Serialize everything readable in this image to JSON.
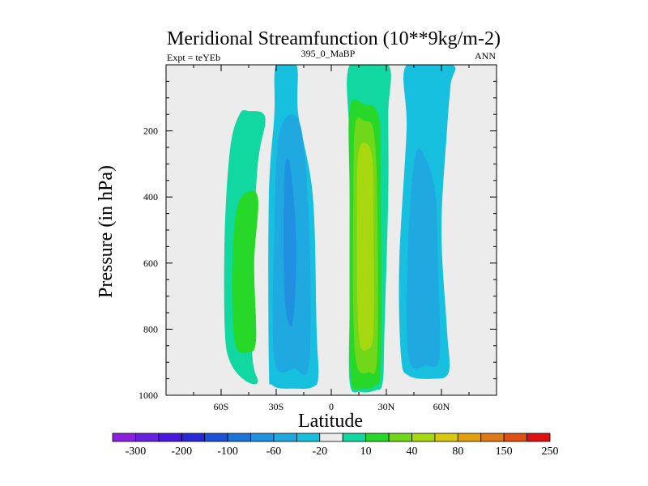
{
  "chart_data": {
    "type": "contour",
    "title": "Meridional Streamfunction (10**9kg/m-2)",
    "subtitle_left": "Expt = teYEb",
    "subtitle_center": "395_0_MaBP",
    "subtitle_right": "ANN",
    "xlabel": "Latitude",
    "ylabel": "Pressure (in hPa)",
    "xlim": [
      -90,
      90
    ],
    "ylim": [
      1000,
      0
    ],
    "x_ticks": [
      {
        "value": -60,
        "label": "60S"
      },
      {
        "value": -30,
        "label": "30S"
      },
      {
        "value": 0,
        "label": "0"
      },
      {
        "value": 30,
        "label": "30N"
      },
      {
        "value": 60,
        "label": "60N"
      }
    ],
    "y_ticks": [
      {
        "value": 200,
        "label": "200"
      },
      {
        "value": 400,
        "label": "400"
      },
      {
        "value": 600,
        "label": "600"
      },
      {
        "value": 800,
        "label": "800"
      },
      {
        "value": 1000,
        "label": "1000"
      }
    ],
    "colorbar": {
      "colors": [
        "#8c20e0",
        "#6820e0",
        "#4818e0",
        "#2828d8",
        "#1c50d8",
        "#1c74d8",
        "#2090e0",
        "#20a8e0",
        "#18c0e0",
        "#ececec",
        "#10d8a0",
        "#28d828",
        "#70d818",
        "#a8d810",
        "#d8c810",
        "#e0a010",
        "#e07818",
        "#e05010",
        "#e01010"
      ],
      "labels": [
        "-300",
        "-200",
        "-100",
        "-60",
        "-20",
        "10",
        "40",
        "80",
        "150",
        "250"
      ]
    },
    "contours": [
      {
        "level": 10,
        "color": "#10d8a0",
        "region": "SH Ferrel cell",
        "points": [
          [
            -36,
            160
          ],
          [
            -40,
            300
          ],
          [
            -43,
            600
          ],
          [
            -43,
            880
          ],
          [
            -40,
            960
          ],
          [
            -47,
            955
          ],
          [
            -55,
            900
          ],
          [
            -58,
            800
          ],
          [
            -58,
            500
          ],
          [
            -55,
            250
          ],
          [
            -50,
            150
          ],
          [
            -45,
            140
          ]
        ]
      },
      {
        "level": 40,
        "color": "#28d828",
        "region": "SH Ferrel core",
        "points": [
          [
            -40,
            400
          ],
          [
            -42,
            600
          ],
          [
            -41,
            830
          ],
          [
            -45,
            870
          ],
          [
            -52,
            850
          ],
          [
            -54,
            700
          ],
          [
            -53,
            500
          ],
          [
            -49,
            400
          ]
        ]
      },
      {
        "level": -20,
        "color": "#18c0e0",
        "region": "SH Hadley cell",
        "points": [
          [
            -19,
            0
          ],
          [
            -18,
            150
          ],
          [
            -10,
            400
          ],
          [
            -8,
            800
          ],
          [
            -7,
            940
          ],
          [
            -10,
            975
          ],
          [
            -20,
            980
          ],
          [
            -32,
            970
          ],
          [
            -34,
            900
          ],
          [
            -34,
            400
          ],
          [
            -31,
            150
          ],
          [
            -30,
            0
          ]
        ]
      },
      {
        "level": -60,
        "color": "#20a8e0",
        "region": "SH Hadley core",
        "points": [
          [
            -17,
            180
          ],
          [
            -12,
            500
          ],
          [
            -12,
            900
          ],
          [
            -20,
            920
          ],
          [
            -31,
            890
          ],
          [
            -31,
            500
          ],
          [
            -28,
            200
          ]
        ]
      },
      {
        "level": -100,
        "color": "#2090e0",
        "region": "SH Hadley inner",
        "points": [
          [
            -22,
            320
          ],
          [
            -19,
            550
          ],
          [
            -21,
            780
          ],
          [
            -25,
            730
          ],
          [
            -26,
            500
          ],
          [
            -25,
            300
          ]
        ]
      },
      {
        "level": 10,
        "color": "#10d8a0",
        "region": "NH Hadley cell",
        "points": [
          [
            10,
            0
          ],
          [
            10,
            250
          ],
          [
            10,
            700
          ],
          [
            10,
            960
          ],
          [
            16,
            990
          ],
          [
            24,
            985
          ],
          [
            28,
            960
          ],
          [
            29,
            800
          ],
          [
            31,
            400
          ],
          [
            31,
            150
          ],
          [
            31,
            0
          ]
        ]
      },
      {
        "level": 40,
        "color": "#28d828",
        "region": "NH Hadley outer",
        "points": [
          [
            10,
            130
          ],
          [
            10,
            400
          ],
          [
            10,
            750
          ],
          [
            11,
            960
          ],
          [
            17,
            980
          ],
          [
            24,
            970
          ],
          [
            27,
            900
          ],
          [
            27,
            400
          ],
          [
            26,
            160
          ],
          [
            18,
            120
          ]
        ]
      },
      {
        "level": 80,
        "color": "#70d818",
        "region": "NH Hadley core",
        "points": [
          [
            13,
            180
          ],
          [
            12,
            400
          ],
          [
            12,
            750
          ],
          [
            14,
            910
          ],
          [
            20,
            930
          ],
          [
            25,
            880
          ],
          [
            25,
            400
          ],
          [
            23,
            200
          ],
          [
            18,
            170
          ]
        ]
      },
      {
        "level": 150,
        "color": "#a8d810",
        "region": "NH Hadley max",
        "points": [
          [
            15,
            260
          ],
          [
            14,
            500
          ],
          [
            15,
            820
          ],
          [
            20,
            860
          ],
          [
            23,
            800
          ],
          [
            23,
            500
          ],
          [
            22,
            270
          ]
        ]
      },
      {
        "level": -20,
        "color": "#18c0e0",
        "region": "NH Ferrel cell",
        "points": [
          [
            41,
            0
          ],
          [
            41,
            200
          ],
          [
            37,
            600
          ],
          [
            38,
            880
          ],
          [
            42,
            940
          ],
          [
            55,
            950
          ],
          [
            64,
            930
          ],
          [
            63,
            800
          ],
          [
            60,
            500
          ],
          [
            63,
            200
          ],
          [
            65,
            60
          ],
          [
            66,
            0
          ]
        ]
      },
      {
        "level": -60,
        "color": "#20a8e0",
        "region": "NH Ferrel core",
        "points": [
          [
            46,
            270
          ],
          [
            42,
            520
          ],
          [
            42,
            880
          ],
          [
            52,
            910
          ],
          [
            59,
            880
          ],
          [
            58,
            600
          ],
          [
            57,
            400
          ],
          [
            52,
            290
          ]
        ]
      }
    ]
  }
}
